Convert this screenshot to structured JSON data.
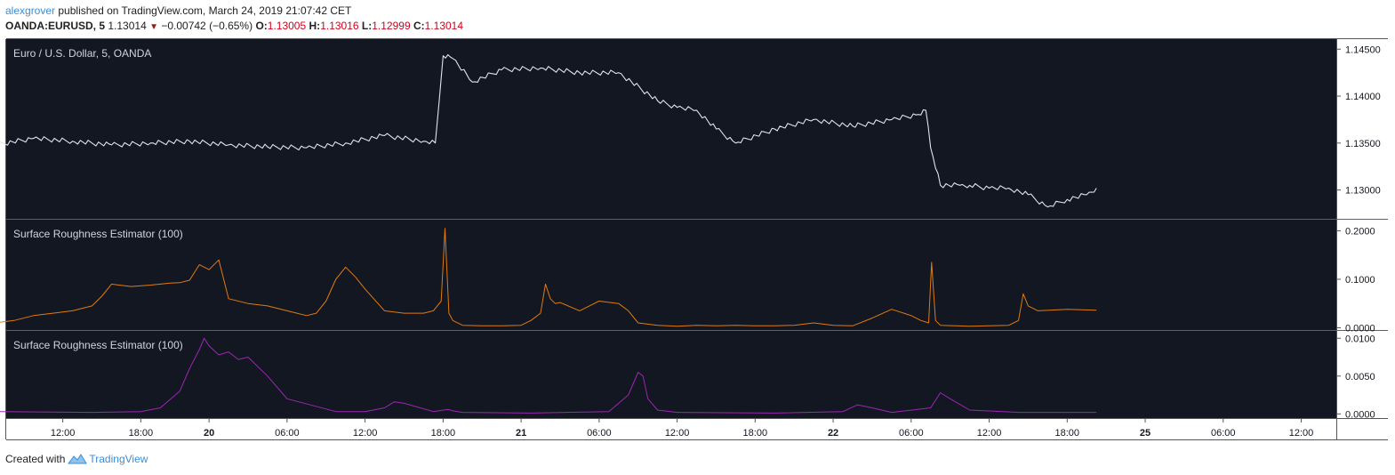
{
  "header": {
    "author": "alexgrover",
    "published": "published on TradingView.com, March 24, 2019 21:07:42 CET",
    "symbol": "OANDA:EURUSD, 5",
    "last": "1.13014",
    "change": "−0.00742 (−0.65%)",
    "open_label": "O:",
    "open": "1.13005",
    "high_label": "H:",
    "high": "1.13016",
    "low_label": "L:",
    "low": "1.12999",
    "close_label": "C:",
    "close": "1.13014"
  },
  "footer": {
    "created_with": "Created with",
    "brand": "TradingView"
  },
  "colors": {
    "background": "#131722",
    "price_line": "#e0e3eb",
    "sre_orange": "#e07a10",
    "sre_purple": "#9c27b0",
    "pane_text": "#d1d4dc",
    "axis_text": "#131722",
    "divider": "#5d606b"
  },
  "chart_data": [
    {
      "type": "line",
      "title": "Euro / U.S. Dollar, 5, OANDA",
      "ylim": [
        1.1275,
        1.1455
      ],
      "yticks": [
        "1.14500",
        "1.14000",
        "1.13500",
        "1.13000"
      ],
      "ytick_values": [
        1.145,
        1.14,
        1.135,
        1.13
      ],
      "x": [
        0,
        4,
        8,
        12,
        16,
        20,
        24,
        28,
        32,
        36,
        40,
        44,
        45.2,
        45.6,
        46,
        47,
        49,
        52,
        56,
        60,
        64,
        68,
        70,
        72,
        74,
        76,
        80,
        84,
        88,
        92,
        94.5,
        95.5,
        96,
        97,
        99,
        100,
        102,
        104,
        106,
        108,
        110,
        112,
        113
      ],
      "values": [
        1.1348,
        1.1355,
        1.1352,
        1.1348,
        1.135,
        1.1352,
        1.1348,
        1.1346,
        1.1345,
        1.135,
        1.1358,
        1.1352,
        1.135,
        1.1395,
        1.1443,
        1.144,
        1.1415,
        1.1428,
        1.143,
        1.1425,
        1.1425,
        1.1395,
        1.1388,
        1.1385,
        1.1365,
        1.135,
        1.1365,
        1.1375,
        1.1368,
        1.1375,
        1.138,
        1.1385,
        1.1345,
        1.1305,
        1.1305,
        1.1305,
        1.1302,
        1.1302,
        1.1295,
        1.1282,
        1.129,
        1.1295,
        1.1302
      ]
    },
    {
      "type": "line",
      "title": "Surface Roughness Estimator (100)",
      "ylim": [
        -0.001,
        0.21
      ],
      "yticks": [
        "0.2000",
        "0.1000",
        "0.0000"
      ],
      "ytick_values": [
        0.2,
        0.1,
        0.0
      ],
      "x": [
        0,
        2,
        4,
        6,
        8,
        10,
        11,
        12,
        14,
        16,
        18,
        19,
        20,
        21,
        22,
        23,
        24,
        26,
        28,
        30,
        32,
        33,
        34,
        35,
        36,
        37,
        38,
        40,
        42,
        44,
        45,
        45.8,
        46.2,
        46.6,
        47,
        48,
        50,
        52,
        54,
        55,
        56,
        56.5,
        57,
        57.5,
        58,
        60,
        61,
        62,
        64,
        65,
        66,
        68,
        70,
        72,
        74,
        76,
        78,
        80,
        82,
        84,
        86,
        88,
        90,
        92,
        94,
        95,
        95.8,
        96.1,
        96.5,
        97,
        100,
        104,
        105,
        105.5,
        106,
        107,
        110,
        113
      ],
      "values": [
        0.01,
        0.015,
        0.025,
        0.03,
        0.035,
        0.045,
        0.065,
        0.09,
        0.085,
        0.088,
        0.092,
        0.093,
        0.098,
        0.13,
        0.12,
        0.14,
        0.06,
        0.05,
        0.045,
        0.035,
        0.025,
        0.03,
        0.055,
        0.1,
        0.125,
        0.105,
        0.08,
        0.035,
        0.03,
        0.03,
        0.035,
        0.055,
        0.205,
        0.03,
        0.015,
        0.005,
        0.004,
        0.004,
        0.005,
        0.015,
        0.03,
        0.09,
        0.06,
        0.05,
        0.052,
        0.035,
        0.045,
        0.055,
        0.05,
        0.035,
        0.01,
        0.005,
        0.003,
        0.005,
        0.004,
        0.005,
        0.004,
        0.004,
        0.005,
        0.01,
        0.005,
        0.004,
        0.02,
        0.038,
        0.025,
        0.015,
        0.01,
        0.135,
        0.015,
        0.005,
        0.003,
        0.005,
        0.015,
        0.07,
        0.045,
        0.035,
        0.038,
        0.036
      ]
    },
    {
      "type": "line",
      "title": "Surface Roughness Estimator (100)",
      "ylim": [
        -0.0002,
        0.0105
      ],
      "yticks": [
        "0.0100",
        "0.0050",
        "0.0000"
      ],
      "ytick_values": [
        0.01,
        0.005,
        0.0
      ],
      "x": [
        0,
        10,
        15,
        17,
        19,
        20,
        21,
        21.5,
        22,
        23,
        24,
        25,
        26,
        28,
        30,
        35,
        38,
        40,
        41,
        42,
        45,
        46.5,
        47,
        48,
        55,
        63,
        65,
        66,
        66.5,
        67,
        68,
        70,
        80,
        87,
        88.5,
        90,
        92,
        96,
        97,
        98,
        100,
        105,
        113
      ],
      "values": [
        0.0003,
        0.0002,
        0.0003,
        0.0008,
        0.003,
        0.006,
        0.0085,
        0.01,
        0.009,
        0.0078,
        0.0082,
        0.0072,
        0.0075,
        0.005,
        0.002,
        0.0003,
        0.0003,
        0.0008,
        0.0016,
        0.0014,
        0.0003,
        0.0006,
        0.0004,
        0.0002,
        0.0001,
        0.0003,
        0.0025,
        0.0055,
        0.005,
        0.002,
        0.0005,
        0.0002,
        0.0001,
        0.0003,
        0.0012,
        0.0008,
        0.0002,
        0.0008,
        0.0028,
        0.002,
        0.0005,
        0.0002,
        0.0002
      ]
    }
  ],
  "x_axis": {
    "ticks": [
      {
        "x": 7,
        "label": "12:00",
        "bold": false
      },
      {
        "x": 15,
        "label": "18:00",
        "bold": false
      },
      {
        "x": 22,
        "label": "20",
        "bold": true
      },
      {
        "x": 30,
        "label": "06:00",
        "bold": false
      },
      {
        "x": 38,
        "label": "12:00",
        "bold": false
      },
      {
        "x": 46,
        "label": "18:00",
        "bold": false
      },
      {
        "x": 54,
        "label": "21",
        "bold": true
      },
      {
        "x": 62,
        "label": "06:00",
        "bold": false
      },
      {
        "x": 70,
        "label": "12:00",
        "bold": false
      },
      {
        "x": 78,
        "label": "18:00",
        "bold": false
      },
      {
        "x": 86,
        "label": "22",
        "bold": true
      },
      {
        "x": 94,
        "label": "06:00",
        "bold": false
      },
      {
        "x": 102,
        "label": "12:00",
        "bold": false
      },
      {
        "x": 110,
        "label": "18:00",
        "bold": false
      },
      {
        "x": 118,
        "label": "25",
        "bold": true
      },
      {
        "x": 126,
        "label": "06:00",
        "bold": false
      },
      {
        "x": 134,
        "label": "12:00",
        "bold": false
      }
    ],
    "xlim": [
      1.2,
      137.6
    ]
  }
}
